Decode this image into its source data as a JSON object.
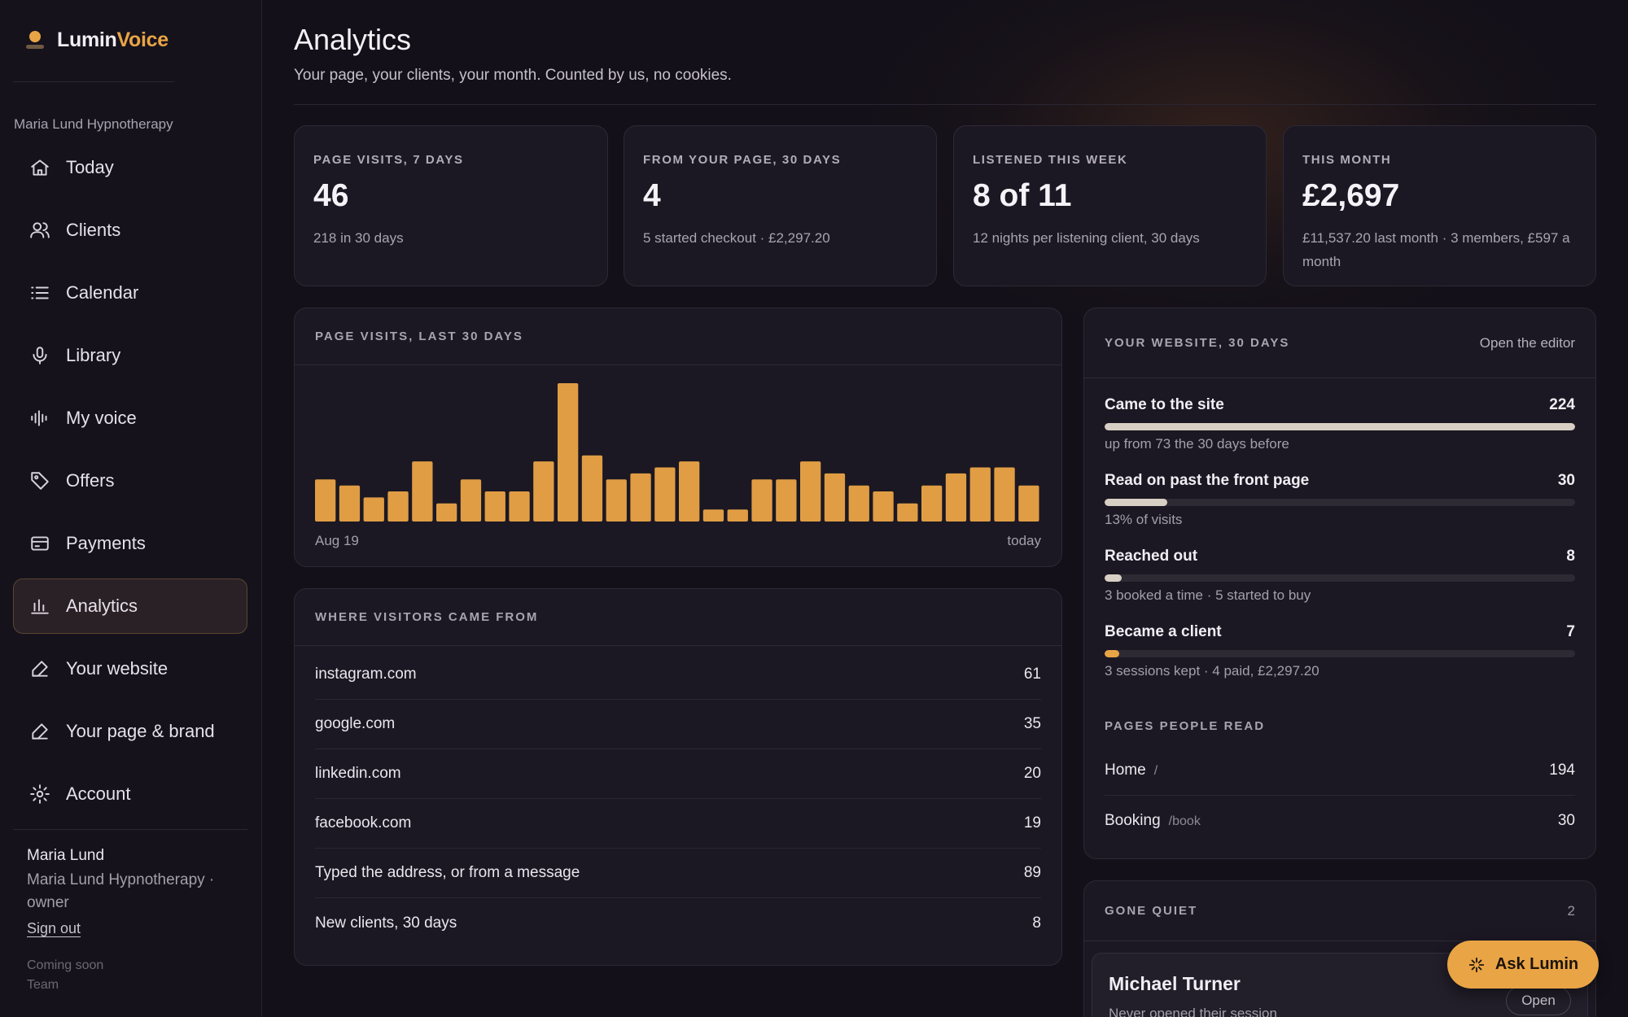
{
  "brand": {
    "part1": "Lumin",
    "part2": "Voice"
  },
  "sidebar": {
    "org": "Maria Lund Hypnotherapy",
    "items": [
      {
        "label": "Today",
        "icon": "home-icon"
      },
      {
        "label": "Clients",
        "icon": "users-icon"
      },
      {
        "label": "Calendar",
        "icon": "list-icon"
      },
      {
        "label": "Library",
        "icon": "microphone-icon"
      },
      {
        "label": "My voice",
        "icon": "waveform-icon"
      },
      {
        "label": "Offers",
        "icon": "tag-icon"
      },
      {
        "label": "Payments",
        "icon": "card-icon"
      },
      {
        "label": "Analytics",
        "icon": "bar-chart-icon"
      },
      {
        "label": "Your website",
        "icon": "edit-icon"
      },
      {
        "label": "Your page & brand",
        "icon": "edit-icon"
      },
      {
        "label": "Account",
        "icon": "gear-icon"
      }
    ],
    "active": "Analytics",
    "user_name": "Maria Lund",
    "user_role": "Maria Lund Hypnotherapy · owner",
    "signout": "Sign out",
    "coming_soon": "Coming soon",
    "team": "Team"
  },
  "header": {
    "title": "Analytics",
    "subtitle": "Your page, your clients, your month. Counted by us, no cookies."
  },
  "stats": [
    {
      "label": "PAGE VISITS, 7 DAYS",
      "value": "46",
      "sub": "218 in 30 days"
    },
    {
      "label": "FROM YOUR PAGE, 30 DAYS",
      "value": "4",
      "sub": "5 started checkout · £2,297.20"
    },
    {
      "label": "LISTENED THIS WEEK",
      "value": "8 of 11",
      "sub": "12 nights per listening client, 30 days"
    },
    {
      "label": "THIS MONTH",
      "value": "£2,697",
      "sub": "£11,537.20 last month · 3 members, £597 a month"
    }
  ],
  "visits_chart": {
    "label": "PAGE VISITS, LAST 30 DAYS",
    "start_label": "Aug 19",
    "end_label": "today"
  },
  "chart_data": {
    "type": "bar",
    "title": "PAGE VISITS, LAST 30 DAYS",
    "categories": [
      "Aug 19",
      "",
      "",
      "",
      "",
      "",
      "",
      "",
      "",
      "",
      "",
      "",
      "",
      "",
      "",
      "",
      "",
      "",
      "",
      "",
      "",
      "",
      "",
      "",
      "",
      "",
      "",
      "",
      "",
      "today"
    ],
    "values": [
      7,
      6,
      4,
      5,
      10,
      3,
      7,
      5,
      5,
      10,
      23,
      11,
      7,
      8,
      9,
      10,
      2,
      2,
      7,
      7,
      10,
      8,
      6,
      5,
      3,
      6,
      8,
      9,
      9,
      6
    ],
    "ylim": [
      0,
      23
    ],
    "color": "#e09d44",
    "grid": false
  },
  "sources": {
    "label": "WHERE VISITORS CAME FROM",
    "rows": [
      {
        "name": "instagram.com",
        "count": "61"
      },
      {
        "name": "google.com",
        "count": "35"
      },
      {
        "name": "linkedin.com",
        "count": "20"
      },
      {
        "name": "facebook.com",
        "count": "19"
      },
      {
        "name": "Typed the address, or from a message",
        "count": "89"
      },
      {
        "name": "New clients, 30 days",
        "count": "8"
      }
    ]
  },
  "website": {
    "label": "YOUR WEBSITE, 30 DAYS",
    "link": "Open the editor",
    "funnel": [
      {
        "label": "Came to the site",
        "value": "224",
        "sub": "up from 73 the 30 days before",
        "fraction": 1.0,
        "color": "#d8cfc4"
      },
      {
        "label": "Read on past the front page",
        "value": "30",
        "sub": "13% of visits",
        "fraction": 0.134,
        "color": "#d8cfc4"
      },
      {
        "label": "Reached out",
        "value": "8",
        "sub": "3 booked a time · 5 started to buy",
        "fraction": 0.036,
        "color": "#d8cfc4"
      },
      {
        "label": "Became a client",
        "value": "7",
        "sub": "3 sessions kept · 4 paid, £2,297.20",
        "fraction": 0.031,
        "color": "#e9a445"
      }
    ],
    "pages_label": "PAGES PEOPLE READ",
    "pages": [
      {
        "name": "Home",
        "path": "/",
        "count": "194"
      },
      {
        "name": "Booking",
        "path": "/book",
        "count": "30"
      }
    ]
  },
  "gone_quiet": {
    "label": "GONE QUIET",
    "count": "2",
    "client_name": "Michael Turner",
    "client_sub": "Never opened their session",
    "open": "Open"
  },
  "ask": {
    "label": "Ask Lumin",
    "icon": "sparkle-icon"
  }
}
